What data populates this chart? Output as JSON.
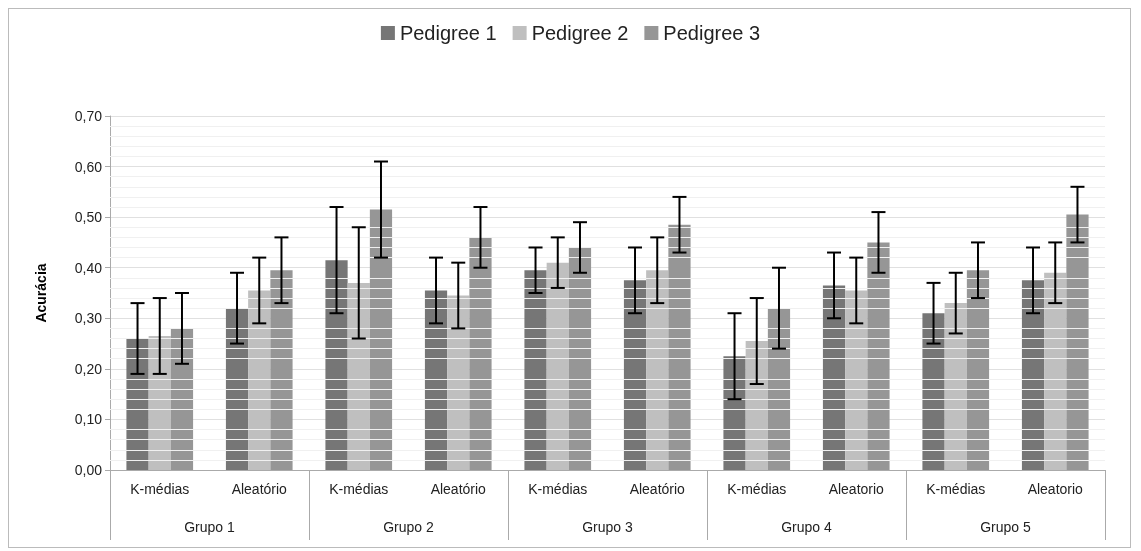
{
  "chart_data": {
    "type": "bar",
    "ylabel": "Acurácia",
    "categories": [
      "K-médias",
      "Aleatório",
      "K-médias",
      "Aleatório",
      "K-médias",
      "Aleatório",
      "K-médias",
      "Aleatorio",
      "K-médias",
      "Aleatorio"
    ],
    "annotations": [
      "Grupo 1",
      "Grupo 2",
      "Grupo 3",
      "Grupo 4",
      "Grupo 5"
    ],
    "series": [
      {
        "name": "Pedigree 1",
        "color": "#767676",
        "values": [
          0.26,
          0.32,
          0.415,
          0.355,
          0.395,
          0.375,
          0.225,
          0.365,
          0.31,
          0.375
        ],
        "errors": [
          [
            0.19,
            0.33
          ],
          [
            0.25,
            0.39
          ],
          [
            0.31,
            0.52
          ],
          [
            0.29,
            0.42
          ],
          [
            0.35,
            0.44
          ],
          [
            0.31,
            0.44
          ],
          [
            0.14,
            0.31
          ],
          [
            0.3,
            0.43
          ],
          [
            0.25,
            0.37
          ],
          [
            0.31,
            0.44
          ]
        ]
      },
      {
        "name": "Pedigree 2",
        "color": "#bfbfbf",
        "values": [
          0.265,
          0.355,
          0.37,
          0.345,
          0.41,
          0.395,
          0.255,
          0.355,
          0.33,
          0.39
        ],
        "errors": [
          [
            0.19,
            0.34
          ],
          [
            0.29,
            0.42
          ],
          [
            0.26,
            0.48
          ],
          [
            0.28,
            0.41
          ],
          [
            0.36,
            0.46
          ],
          [
            0.33,
            0.46
          ],
          [
            0.17,
            0.34
          ],
          [
            0.29,
            0.42
          ],
          [
            0.27,
            0.39
          ],
          [
            0.33,
            0.45
          ]
        ]
      },
      {
        "name": "Pedigree 3",
        "color": "#969696",
        "values": [
          0.28,
          0.395,
          0.515,
          0.46,
          0.44,
          0.485,
          0.32,
          0.45,
          0.395,
          0.505
        ],
        "errors": [
          [
            0.21,
            0.35
          ],
          [
            0.33,
            0.46
          ],
          [
            0.42,
            0.61
          ],
          [
            0.4,
            0.52
          ],
          [
            0.39,
            0.49
          ],
          [
            0.43,
            0.54
          ],
          [
            0.24,
            0.4
          ],
          [
            0.39,
            0.51
          ],
          [
            0.34,
            0.45
          ],
          [
            0.45,
            0.56
          ]
        ]
      }
    ],
    "ylim": [
      0,
      0.7
    ],
    "yticks": [
      {
        "value": 0,
        "label": "0,00"
      },
      {
        "value": 0.1,
        "label": "0,10"
      },
      {
        "value": 0.2,
        "label": "0,20"
      },
      {
        "value": 0.3,
        "label": "0,30"
      },
      {
        "value": 0.4,
        "label": "0,40"
      },
      {
        "value": 0.5,
        "label": "0,50"
      },
      {
        "value": 0.6,
        "label": "0,60"
      },
      {
        "value": 0.7,
        "label": "0,70"
      }
    ],
    "grid": "y",
    "legend": "top"
  }
}
